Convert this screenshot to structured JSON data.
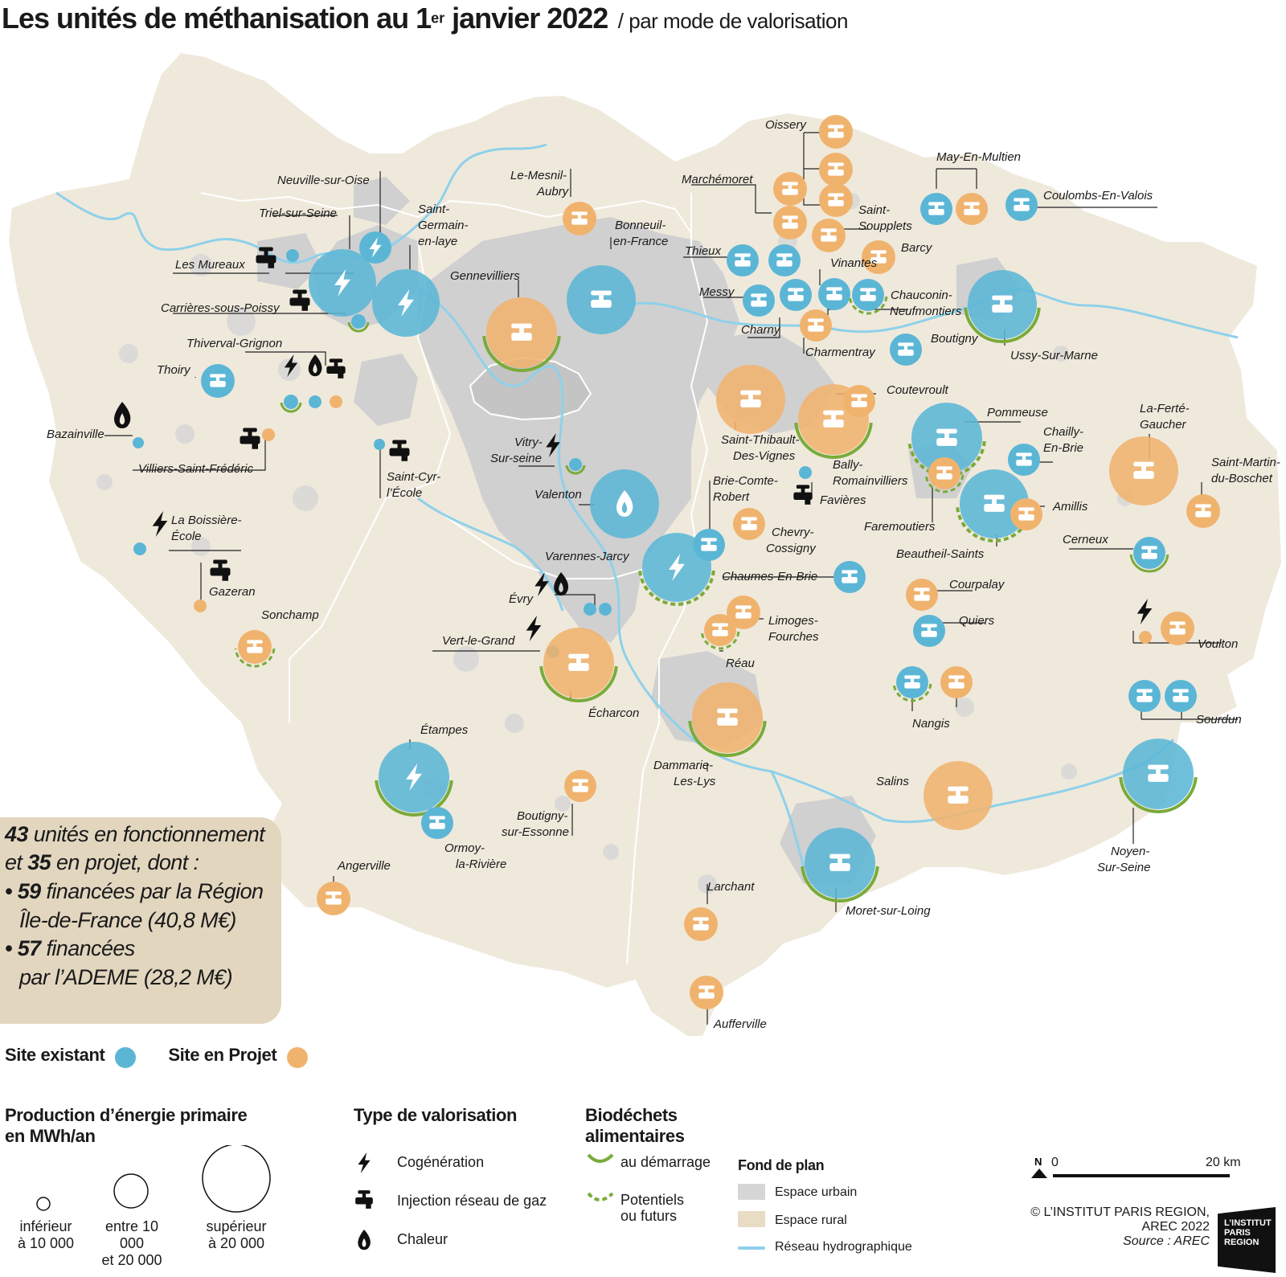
{
  "title": {
    "main": "Les unités de méthanisation  au 1",
    "sup": "er",
    "main2": " janvier 2022",
    "sub": "/ par mode de valorisation"
  },
  "stats": {
    "l1_num": "43",
    "l1_text": " unités en fonctionnement",
    "l2_pre": "et ",
    "l2_num": "35",
    "l2_text": " en projet, dont :",
    "l3_pre": "• ",
    "l3_num": "59",
    "l3_text": " financées par la Région",
    "l4": "Île-de-France (40,8 M€)",
    "l5_pre": "• ",
    "l5_num": "57",
    "l5_text": " financées",
    "l6": "par l’ADEME (28,2 M€)"
  },
  "colors": {
    "existing": "#5bb6d6",
    "project": "#f0b36e",
    "biodechets": "#7aab3a",
    "urban": "#d6d6d6",
    "rural": "#efe9dc",
    "water": "#8ed1ea",
    "stats_box": "#e2d6bf"
  },
  "labels": [
    {
      "k": "neuville",
      "text": "Neuville-sur-Oise"
    },
    {
      "k": "triel",
      "text": "Triel-sur-Seine"
    },
    {
      "k": "sg1",
      "text": "Saint-"
    },
    {
      "k": "sg2",
      "text": "Germain-"
    },
    {
      "k": "sg3",
      "text": "en-laye"
    },
    {
      "k": "mureaux",
      "text": "Les Mureaux"
    },
    {
      "k": "carrieres",
      "text": "Carrières-sous-Poissy"
    },
    {
      "k": "genne",
      "text": "Gennevilliers"
    },
    {
      "k": "thiverval",
      "text": "Thiverval-Grignon"
    },
    {
      "k": "thoiry",
      "text": "Thoiry"
    },
    {
      "k": "bazain",
      "text": "Bazainville"
    },
    {
      "k": "villiers",
      "text": "Villiers-Saint-Frédéric"
    },
    {
      "k": "cyr1",
      "text": "Saint-Cyr-"
    },
    {
      "k": "cyr2",
      "text": "l’École"
    },
    {
      "k": "boiss1",
      "text": "La Boissière-"
    },
    {
      "k": "boiss2",
      "text": "École"
    },
    {
      "k": "gazeran",
      "text": "Gazeran"
    },
    {
      "k": "sonchamp",
      "text": "Sonchamp"
    },
    {
      "k": "mesnil1",
      "text": "Le-Mesnil-"
    },
    {
      "k": "mesnil2",
      "text": "Aubry"
    },
    {
      "k": "bonneuil1",
      "text": "Bonneuil-"
    },
    {
      "k": "bonneuil2",
      "text": "en-France"
    },
    {
      "k": "vitry1",
      "text": "Vitry-"
    },
    {
      "k": "vitry2",
      "text": "Sur-seine"
    },
    {
      "k": "valenton",
      "text": "Valenton"
    },
    {
      "k": "varennes",
      "text": "Varennes-Jarcy"
    },
    {
      "k": "evry",
      "text": "Évry"
    },
    {
      "k": "vertgrand",
      "text": "Vert-le-Grand"
    },
    {
      "k": "echarcon",
      "text": "Écharcon"
    },
    {
      "k": "etampes",
      "text": "Étampes"
    },
    {
      "k": "ormoy1",
      "text": "Ormoy-"
    },
    {
      "k": "ormoy2",
      "text": "la-Rivière"
    },
    {
      "k": "boutigny1",
      "text": "Boutigny-"
    },
    {
      "k": "boutigny2",
      "text": "sur-Essonne"
    },
    {
      "k": "angerville",
      "text": "Angerville"
    },
    {
      "k": "oissery",
      "text": "Oissery"
    },
    {
      "k": "marchemoret",
      "text": "Marchémoret"
    },
    {
      "k": "supplets1",
      "text": "Saint-"
    },
    {
      "k": "supplets2",
      "text": "Soupplets"
    },
    {
      "k": "maymult",
      "text": "May-En-Multien"
    },
    {
      "k": "coulombs",
      "text": "Coulombs-En-Valois"
    },
    {
      "k": "thieux",
      "text": "Thieux"
    },
    {
      "k": "vinantes",
      "text": "Vinantes"
    },
    {
      "k": "barcy",
      "text": "Barcy"
    },
    {
      "k": "messy",
      "text": "Messy"
    },
    {
      "k": "chauconin1",
      "text": "Chauconin-"
    },
    {
      "k": "chauconin2",
      "text": "Neufmontiers"
    },
    {
      "k": "charny",
      "text": "Charny"
    },
    {
      "k": "charmentray",
      "text": "Charmentray"
    },
    {
      "k": "boutigny_m",
      "text": "Boutigny"
    },
    {
      "k": "ussy",
      "text": "Ussy-Sur-Marne"
    },
    {
      "k": "coutevroult",
      "text": "Coutevroult"
    },
    {
      "k": "stthib1",
      "text": "Saint-Thibault-"
    },
    {
      "k": "stthib2",
      "text": "Des-Vignes"
    },
    {
      "k": "bally1",
      "text": "Bally-"
    },
    {
      "k": "bally2",
      "text": "Romainvilliers"
    },
    {
      "k": "pommeuse",
      "text": "Pommeuse"
    },
    {
      "k": "chailly1",
      "text": "Chailly-"
    },
    {
      "k": "chailly2",
      "text": "En-Brie"
    },
    {
      "k": "laferte1",
      "text": "La-Ferté-"
    },
    {
      "k": "laferte2",
      "text": "Gaucher"
    },
    {
      "k": "stmartin1",
      "text": "Saint-Martin-"
    },
    {
      "k": "stmartin2",
      "text": "du-Boschet"
    },
    {
      "k": "brie1",
      "text": "Brie-Comte-"
    },
    {
      "k": "brie2",
      "text": "Robert"
    },
    {
      "k": "favieres",
      "text": "Favières"
    },
    {
      "k": "faremoutiers",
      "text": "Faremoutiers"
    },
    {
      "k": "amillis",
      "text": "Amillis"
    },
    {
      "k": "beautheil",
      "text": "Beautheil-Saints"
    },
    {
      "k": "chevry1",
      "text": "Chevry-"
    },
    {
      "k": "chevry2",
      "text": "Cossigny"
    },
    {
      "k": "cerneux",
      "text": "Cerneux"
    },
    {
      "k": "chaumes",
      "text": "Chaumes-En-Brie"
    },
    {
      "k": "courpalay",
      "text": "Courpalay"
    },
    {
      "k": "limoges1",
      "text": "Limoges-"
    },
    {
      "k": "limoges2",
      "text": "Fourches"
    },
    {
      "k": "quiers",
      "text": "Quiers"
    },
    {
      "k": "voulton",
      "text": "Voulton"
    },
    {
      "k": "reau",
      "text": "Réau"
    },
    {
      "k": "nangis",
      "text": "Nangis"
    },
    {
      "k": "sourdun",
      "text": "Sourdun"
    },
    {
      "k": "dammarie1",
      "text": "Dammarie-"
    },
    {
      "k": "dammarie2",
      "text": "Les-Lys"
    },
    {
      "k": "salins",
      "text": "Salins"
    },
    {
      "k": "noyen1",
      "text": "Noyen-"
    },
    {
      "k": "noyen2",
      "text": "Sur-Seine"
    },
    {
      "k": "moret",
      "text": "Moret-sur-Loing"
    },
    {
      "k": "larchant",
      "text": "Larchant"
    },
    {
      "k": "aufferville",
      "text": "Aufferville"
    }
  ],
  "legend": {
    "site_existant": "Site existant",
    "site_projet": "Site en Projet",
    "prod_title1": "Production d’énergie primaire",
    "prod_title2": "en MWh/an",
    "size_small1": "inférieur",
    "size_small2": "à 10 000",
    "size_mid1": "entre 10 000",
    "size_mid2": "et 20 000",
    "size_big1": "supérieur",
    "size_big2": "à 20 000",
    "type_title": "Type de valorisation",
    "cogeneration": "Cogénération",
    "injection": "Injection réseau de gaz",
    "chaleur": "Chaleur",
    "bio_title1": "Biodéchets",
    "bio_title2": "alimentaires",
    "bio_start": "au démarrage",
    "bio_future1": "Potentiels",
    "bio_future2": "ou futurs",
    "fond_title": "Fond de plan",
    "urban": "Espace urbain",
    "rural": "Espace rural",
    "hydro": "Réseau hydrographique",
    "north": "N",
    "scale0": "0",
    "scale20": "20 km",
    "copyright": "© L’INSTITUT PARIS REGION, AREC 2022",
    "source": "Source : AREC",
    "logo1": "L’INSTITUT",
    "logo2": "PARIS",
    "logo3": "REGION"
  }
}
